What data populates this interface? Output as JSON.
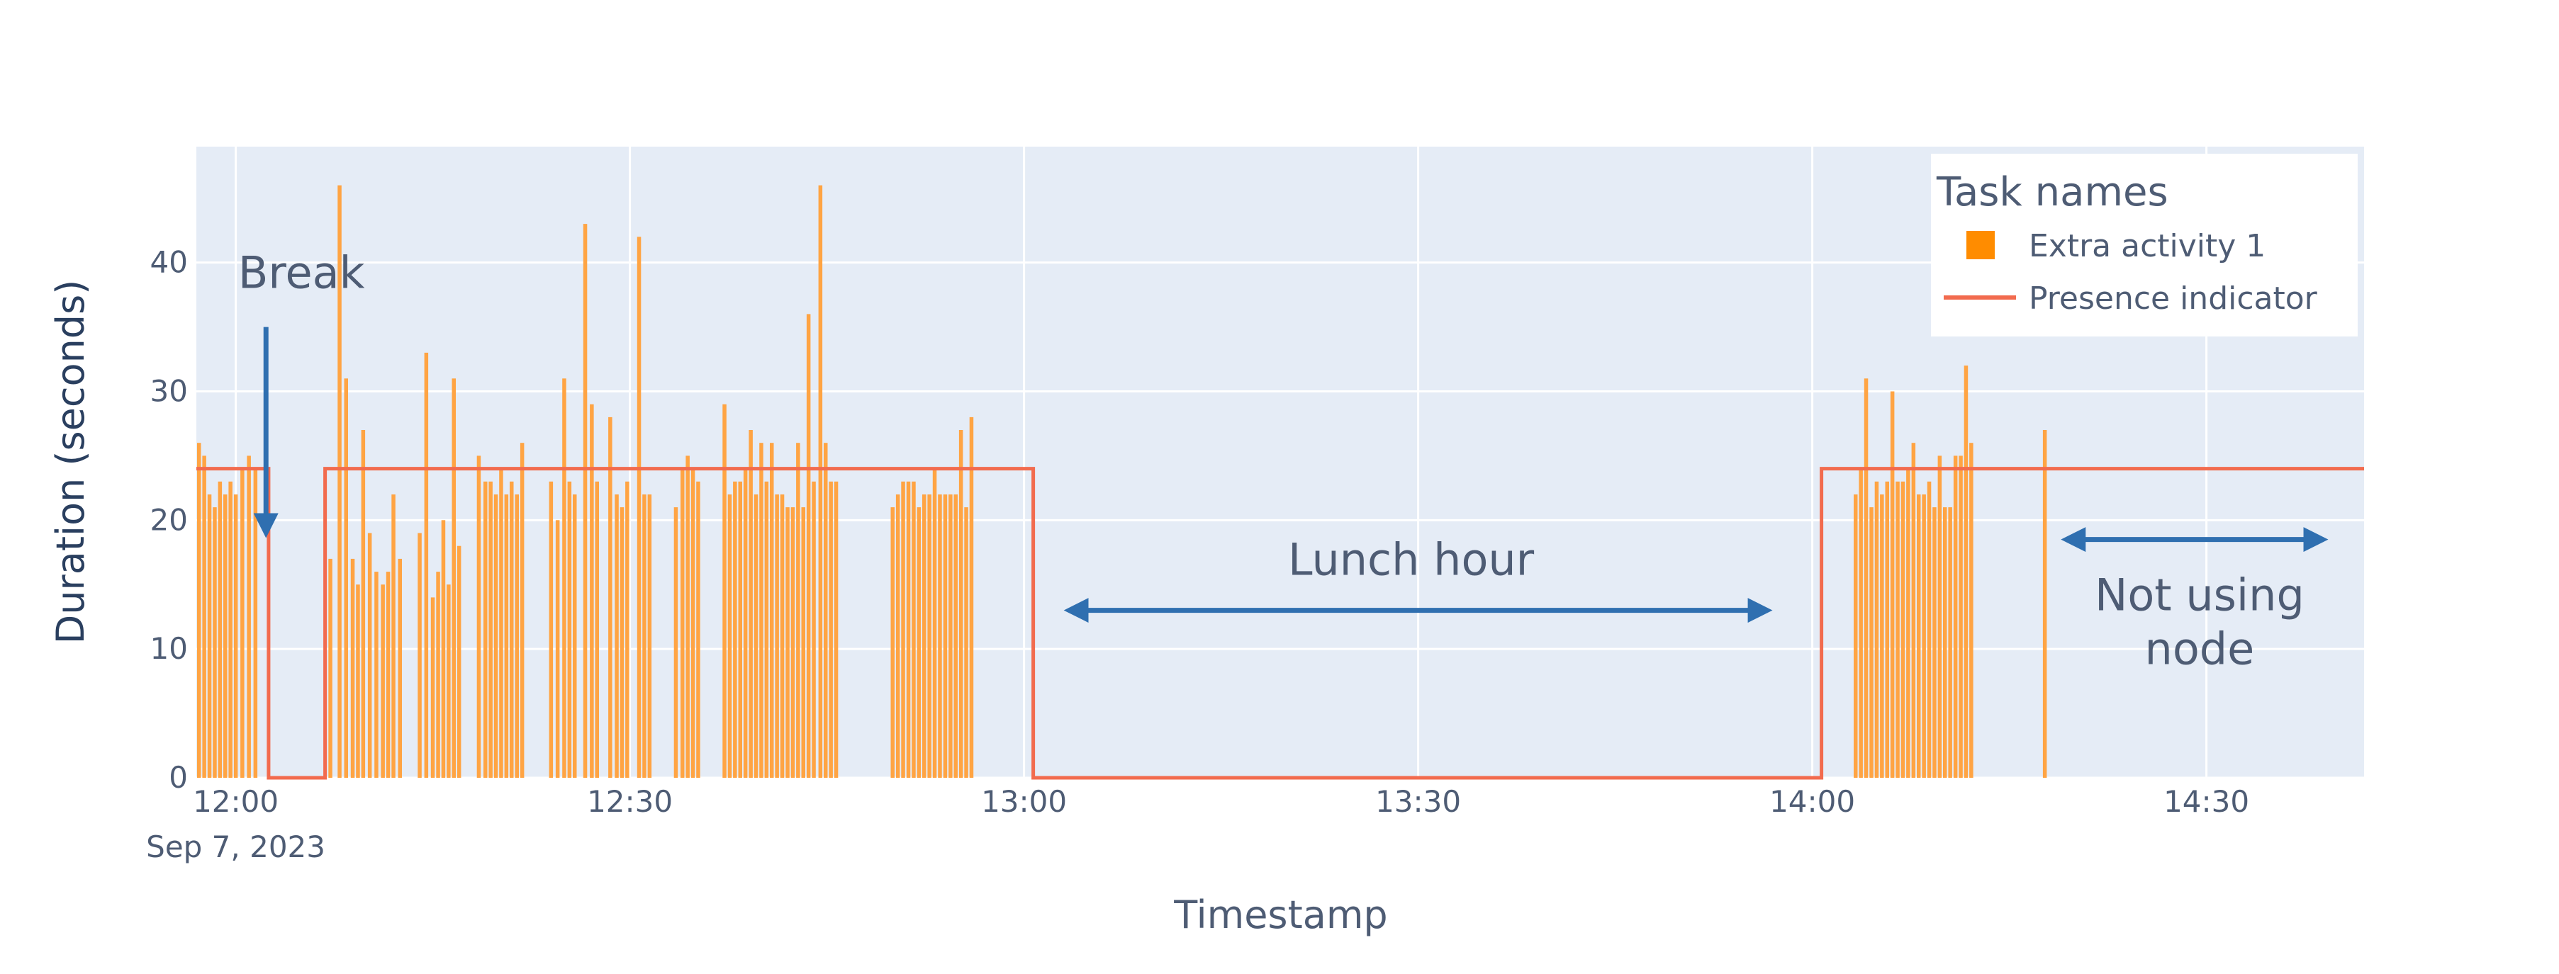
{
  "chart_data": {
    "type": "bar",
    "xlabel": "Timestamp",
    "ylabel": "Duration (seconds)",
    "x_range": [
      "11:57",
      "14:42"
    ],
    "ylim": [
      0,
      49
    ],
    "x_ticks": [
      "12:00",
      "12:30",
      "13:00",
      "13:30",
      "14:00",
      "14:30"
    ],
    "x_date_label": "Sep 7, 2023",
    "y_ticks": [
      0,
      10,
      20,
      30,
      40
    ],
    "grid": true,
    "legend": {
      "title": "Task names",
      "position": "top-right",
      "entries": [
        "Extra activity 1",
        "Presence indicator"
      ]
    },
    "colors": {
      "bars": "#FFA443",
      "presence": "#F26B4E",
      "plot_bg": "#E5ECF6",
      "grid": "#FFFFFF",
      "arrow": "#2F6FB0",
      "axis_text": "#4E5C74"
    },
    "series": [
      {
        "name": "Extra activity 1",
        "type": "bar",
        "points": [
          [
            "11:57.2",
            26
          ],
          [
            "11:57.6",
            25
          ],
          [
            "11:58.0",
            22
          ],
          [
            "11:58.4",
            21
          ],
          [
            "11:58.8",
            23
          ],
          [
            "11:59.2",
            22
          ],
          [
            "11:59.6",
            23
          ],
          [
            "12:00.0",
            22
          ],
          [
            "12:00.5",
            24
          ],
          [
            "12:01.0",
            25
          ],
          [
            "12:01.5",
            24
          ],
          [
            "12:07.2",
            17
          ],
          [
            "12:07.9",
            46
          ],
          [
            "12:08.4",
            31
          ],
          [
            "12:08.9",
            17
          ],
          [
            "12:09.3",
            15
          ],
          [
            "12:09.7",
            27
          ],
          [
            "12:10.2",
            19
          ],
          [
            "12:10.7",
            16
          ],
          [
            "12:11.2",
            15
          ],
          [
            "12:11.6",
            16
          ],
          [
            "12:12.0",
            22
          ],
          [
            "12:12.5",
            17
          ],
          [
            "12:14.0",
            19
          ],
          [
            "12:14.5",
            33
          ],
          [
            "12:15.0",
            14
          ],
          [
            "12:15.4",
            16
          ],
          [
            "12:15.8",
            20
          ],
          [
            "12:16.2",
            15
          ],
          [
            "12:16.6",
            31
          ],
          [
            "12:17.0",
            18
          ],
          [
            "12:18.5",
            25
          ],
          [
            "12:19.0",
            23
          ],
          [
            "12:19.4",
            23
          ],
          [
            "12:19.8",
            22
          ],
          [
            "12:20.2",
            24
          ],
          [
            "12:20.6",
            22
          ],
          [
            "12:21.0",
            23
          ],
          [
            "12:21.4",
            22
          ],
          [
            "12:21.8",
            26
          ],
          [
            "12:24.0",
            23
          ],
          [
            "12:24.5",
            20
          ],
          [
            "12:25.0",
            31
          ],
          [
            "12:25.4",
            23
          ],
          [
            "12:25.8",
            22
          ],
          [
            "12:26.6",
            43
          ],
          [
            "12:27.1",
            29
          ],
          [
            "12:27.5",
            23
          ],
          [
            "12:28.5",
            28
          ],
          [
            "12:29.0",
            22
          ],
          [
            "12:29.4",
            21
          ],
          [
            "12:29.8",
            23
          ],
          [
            "12:30.7",
            42
          ],
          [
            "12:31.1",
            22
          ],
          [
            "12:31.5",
            22
          ],
          [
            "12:33.5",
            21
          ],
          [
            "12:34.0",
            24
          ],
          [
            "12:34.4",
            25
          ],
          [
            "12:34.8",
            24
          ],
          [
            "12:35.2",
            23
          ],
          [
            "12:37.2",
            29
          ],
          [
            "12:37.6",
            22
          ],
          [
            "12:38.0",
            23
          ],
          [
            "12:38.4",
            23
          ],
          [
            "12:38.8",
            24
          ],
          [
            "12:39.2",
            27
          ],
          [
            "12:39.6",
            22
          ],
          [
            "12:40.0",
            26
          ],
          [
            "12:40.4",
            23
          ],
          [
            "12:40.8",
            26
          ],
          [
            "12:41.2",
            22
          ],
          [
            "12:41.6",
            22
          ],
          [
            "12:42.0",
            21
          ],
          [
            "12:42.4",
            21
          ],
          [
            "12:42.8",
            26
          ],
          [
            "12:43.2",
            21
          ],
          [
            "12:43.6",
            36
          ],
          [
            "12:44.0",
            23
          ],
          [
            "12:44.5",
            46
          ],
          [
            "12:44.9",
            26
          ],
          [
            "12:45.3",
            23
          ],
          [
            "12:45.7",
            23
          ],
          [
            "12:50.0",
            21
          ],
          [
            "12:50.4",
            22
          ],
          [
            "12:50.8",
            23
          ],
          [
            "12:51.2",
            23
          ],
          [
            "12:51.6",
            23
          ],
          [
            "12:52.0",
            21
          ],
          [
            "12:52.4",
            22
          ],
          [
            "12:52.8",
            22
          ],
          [
            "12:53.2",
            24
          ],
          [
            "12:53.6",
            22
          ],
          [
            "12:54.0",
            22
          ],
          [
            "12:54.4",
            22
          ],
          [
            "12:54.8",
            22
          ],
          [
            "12:55.2",
            27
          ],
          [
            "12:55.6",
            21
          ],
          [
            "12:56.0",
            28
          ],
          [
            "14:03.3",
            22
          ],
          [
            "14:03.7",
            24
          ],
          [
            "14:04.1",
            31
          ],
          [
            "14:04.5",
            21
          ],
          [
            "14:04.9",
            23
          ],
          [
            "14:05.3",
            22
          ],
          [
            "14:05.7",
            23
          ],
          [
            "14:06.1",
            30
          ],
          [
            "14:06.5",
            23
          ],
          [
            "14:06.9",
            23
          ],
          [
            "14:07.3",
            24
          ],
          [
            "14:07.7",
            26
          ],
          [
            "14:08.1",
            22
          ],
          [
            "14:08.5",
            22
          ],
          [
            "14:08.9",
            23
          ],
          [
            "14:09.3",
            21
          ],
          [
            "14:09.7",
            25
          ],
          [
            "14:10.1",
            21
          ],
          [
            "14:10.5",
            21
          ],
          [
            "14:10.9",
            25
          ],
          [
            "14:11.3",
            25
          ],
          [
            "14:11.7",
            32
          ],
          [
            "14:12.1",
            26
          ],
          [
            "14:17.7",
            27
          ]
        ]
      },
      {
        "name": "Presence indicator",
        "type": "line",
        "shape": "step",
        "points": [
          [
            "11:57",
            24
          ],
          [
            "12:02.5",
            24
          ],
          [
            "12:02.5",
            0
          ],
          [
            "12:06.8",
            0
          ],
          [
            "12:06.8",
            24
          ],
          [
            "13:00.7",
            24
          ],
          [
            "13:00.7",
            0
          ],
          [
            "14:00.7",
            0
          ],
          [
            "14:00.7",
            24
          ],
          [
            "14:42",
            24
          ]
        ]
      }
    ],
    "annotations": [
      {
        "text": "Break",
        "arrow": "down",
        "from": [
          "12:02.3",
          35
        ],
        "to": [
          "12:02.3",
          19
        ]
      },
      {
        "text": "Lunch hour",
        "arrow": "both",
        "from": [
          "13:03.4",
          13
        ],
        "to": [
          "13:56.6",
          13
        ]
      },
      {
        "text": "Not using node",
        "lines": [
          "Not using",
          "node"
        ],
        "arrow": "both",
        "from": [
          "14:19.3",
          18.5
        ],
        "to": [
          "14:38.9",
          18.5
        ]
      }
    ]
  }
}
